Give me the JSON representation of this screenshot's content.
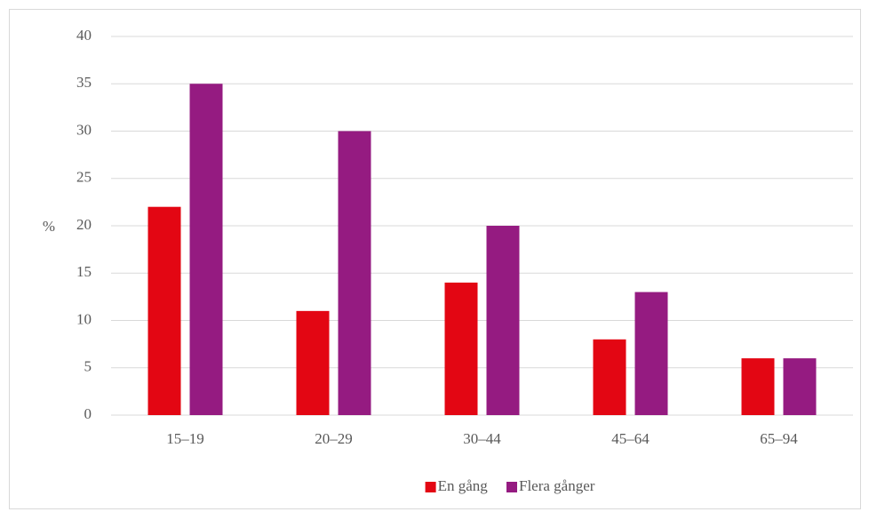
{
  "chart_data": {
    "type": "bar",
    "y_label": "%",
    "categories": [
      "15–19",
      "20–29",
      "30–44",
      "45–64",
      "65–94"
    ],
    "series": [
      {
        "name": "En gång",
        "color": "#e30613",
        "values": [
          22,
          11,
          14,
          8,
          6
        ]
      },
      {
        "name": "Flera gånger",
        "color": "#951b81",
        "values": [
          35,
          30,
          20,
          13,
          6
        ]
      }
    ],
    "ylim": [
      0,
      40
    ],
    "yticks": [
      0,
      5,
      10,
      15,
      20,
      25,
      30,
      35,
      40
    ],
    "grid": true,
    "legend": "bottom"
  }
}
